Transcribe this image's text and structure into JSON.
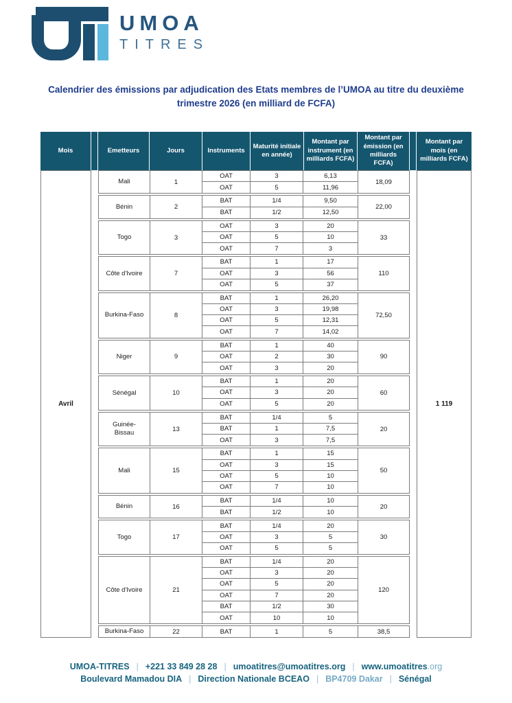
{
  "logo": {
    "line1": "UMOA",
    "line2": "TITRES"
  },
  "title": "Calendrier des émissions par adjudication des Etats membres de l’UMOA au titre du deuxième trimestre 2026 (en milliard de FCFA)",
  "colors": {
    "header_bg": "#15566F",
    "title": "#1E3C8C",
    "logo_dark": "#1D4E6F",
    "logo_light": "#5CB7DD",
    "footer_text": "#17637F",
    "footer_muted": "#74A9C5"
  },
  "table": {
    "headers": [
      "Mois",
      "Emetteurs",
      "Jours",
      "Instruments",
      "Maturité initiale en année)",
      "Montant par instrument (en milliards FCFA)",
      "Montant par émission (en milliards FCFA)",
      "Montant par mois (en milliards FCFA)"
    ],
    "month": "Avril",
    "month_total": "1 119",
    "groups": [
      {
        "issuer": "Mali",
        "day": "1",
        "emission": "18,09",
        "rows": [
          {
            "instrument": "OAT",
            "maturity": "3",
            "amount": "6,13"
          },
          {
            "instrument": "OAT",
            "maturity": "5",
            "amount": "11,96"
          }
        ]
      },
      {
        "issuer": "Bénin",
        "day": "2",
        "emission": "22,00",
        "rows": [
          {
            "instrument": "BAT",
            "maturity": "1/4",
            "amount": "9,50"
          },
          {
            "instrument": "BAT",
            "maturity": "1/2",
            "amount": "12,50"
          }
        ]
      },
      {
        "issuer": "Togo",
        "day": "3",
        "emission": "33",
        "rows": [
          {
            "instrument": "OAT",
            "maturity": "3",
            "amount": "20"
          },
          {
            "instrument": "OAT",
            "maturity": "5",
            "amount": "10"
          },
          {
            "instrument": "OAT",
            "maturity": "7",
            "amount": "3"
          }
        ]
      },
      {
        "issuer": "Côte d'Ivoire",
        "day": "7",
        "emission": "110",
        "rows": [
          {
            "instrument": "BAT",
            "maturity": "1",
            "amount": "17"
          },
          {
            "instrument": "OAT",
            "maturity": "3",
            "amount": "56"
          },
          {
            "instrument": "OAT",
            "maturity": "5",
            "amount": "37"
          }
        ]
      },
      {
        "issuer": "Burkina-Faso",
        "day": "8",
        "emission": "72,50",
        "rows": [
          {
            "instrument": "BAT",
            "maturity": "1",
            "amount": "26,20"
          },
          {
            "instrument": "OAT",
            "maturity": "3",
            "amount": "19,98"
          },
          {
            "instrument": "OAT",
            "maturity": "5",
            "amount": "12,31"
          },
          {
            "instrument": "OAT",
            "maturity": "7",
            "amount": "14,02"
          }
        ]
      },
      {
        "issuer": "Niger",
        "day": "9",
        "emission": "90",
        "rows": [
          {
            "instrument": "BAT",
            "maturity": "1",
            "amount": "40"
          },
          {
            "instrument": "OAT",
            "maturity": "2",
            "amount": "30"
          },
          {
            "instrument": "OAT",
            "maturity": "3",
            "amount": "20"
          }
        ]
      },
      {
        "issuer": "Sénégal",
        "day": "10",
        "emission": "60",
        "rows": [
          {
            "instrument": "BAT",
            "maturity": "1",
            "amount": "20"
          },
          {
            "instrument": "OAT",
            "maturity": "3",
            "amount": "20"
          },
          {
            "instrument": "OAT",
            "maturity": "5",
            "amount": "20"
          }
        ]
      },
      {
        "issuer": "Guinée-Bissau",
        "day": "13",
        "emission": "20",
        "rows": [
          {
            "instrument": "BAT",
            "maturity": "1/4",
            "amount": "5"
          },
          {
            "instrument": "BAT",
            "maturity": "1",
            "amount": "7,5"
          },
          {
            "instrument": "OAT",
            "maturity": "3",
            "amount": "7,5"
          }
        ]
      },
      {
        "issuer": "Mali",
        "day": "15",
        "emission": "50",
        "rows": [
          {
            "instrument": "BAT",
            "maturity": "1",
            "amount": "15"
          },
          {
            "instrument": "OAT",
            "maturity": "3",
            "amount": "15"
          },
          {
            "instrument": "OAT",
            "maturity": "5",
            "amount": "10"
          },
          {
            "instrument": "OAT",
            "maturity": "7",
            "amount": "10"
          }
        ]
      },
      {
        "issuer": "Bénin",
        "day": "16",
        "emission": "20",
        "rows": [
          {
            "instrument": "BAT",
            "maturity": "1/4",
            "amount": "10"
          },
          {
            "instrument": "BAT",
            "maturity": "1/2",
            "amount": "10"
          }
        ]
      },
      {
        "issuer": "Togo",
        "day": "17",
        "emission": "30",
        "rows": [
          {
            "instrument": "BAT",
            "maturity": "1/4",
            "amount": "20"
          },
          {
            "instrument": "OAT",
            "maturity": "3",
            "amount": "5"
          },
          {
            "instrument": "OAT",
            "maturity": "5",
            "amount": "5"
          }
        ]
      },
      {
        "issuer": "Côte d'Ivoire",
        "day": "21",
        "emission": "120",
        "rows": [
          {
            "instrument": "BAT",
            "maturity": "1/4",
            "amount": "20"
          },
          {
            "instrument": "OAT",
            "maturity": "3",
            "amount": "20"
          },
          {
            "instrument": "OAT",
            "maturity": "5",
            "amount": "20"
          },
          {
            "instrument": "OAT",
            "maturity": "7",
            "amount": "20"
          },
          {
            "instrument": "BAT",
            "maturity": "1/2",
            "amount": "30"
          },
          {
            "instrument": "OAT",
            "maturity": "10",
            "amount": "10"
          }
        ]
      },
      {
        "issuer": "Burkina-Faso",
        "day": "22",
        "emission": "38,5",
        "rows": [
          {
            "instrument": "BAT",
            "maturity": "1",
            "amount": "5"
          }
        ]
      }
    ]
  },
  "footer": {
    "line1": [
      {
        "text": "UMOA-TITRES"
      },
      {
        "text": "+221 33 849 28 28"
      },
      {
        "text": "umoatitres@umoatitres.org"
      },
      {
        "text": "www.umoatitres",
        "suffix": ".org"
      }
    ],
    "line2": [
      {
        "text": "Boulevard Mamadou DIA"
      },
      {
        "text": "Direction Nationale BCEAO"
      },
      {
        "text": "BP4709 Dakar",
        "muted": true
      },
      {
        "text": "Sénégal"
      }
    ],
    "separator": "|"
  }
}
